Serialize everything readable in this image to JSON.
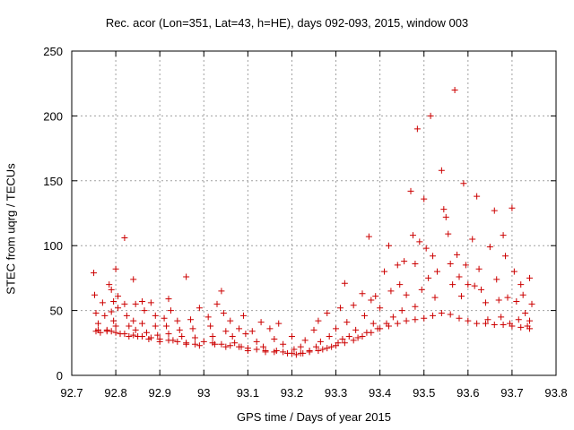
{
  "chart_data": {
    "type": "scatter",
    "title": "Rec. acor (Lon=351, Lat=43, h=HE), days 092-093, 2015, window 003",
    "xlabel": "GPS time / Days of year 2015",
    "ylabel": "STEC from uqrg / TECUs",
    "xlim": [
      92.7,
      93.8
    ],
    "ylim": [
      0,
      250
    ],
    "xticks": [
      92.7,
      92.8,
      92.9,
      93.0,
      93.1,
      93.2,
      93.3,
      93.4,
      93.5,
      93.6,
      93.7,
      93.8
    ],
    "xtick_labels": [
      "92.7",
      "92.8",
      "92.9",
      "93",
      "93.1",
      "93.2",
      "93.3",
      "93.4",
      "93.5",
      "93.6",
      "93.7",
      "93.8"
    ],
    "yticks": [
      0,
      50,
      100,
      150,
      200,
      250
    ],
    "ytick_labels": [
      "0",
      "50",
      "100",
      "150",
      "200",
      "250"
    ],
    "grid": true,
    "marker": "+",
    "color": "#cc0000",
    "points": [
      [
        92.75,
        79
      ],
      [
        92.752,
        62
      ],
      [
        92.755,
        48
      ],
      [
        92.76,
        40
      ],
      [
        92.755,
        34
      ],
      [
        92.77,
        56
      ],
      [
        92.775,
        46
      ],
      [
        92.78,
        35
      ],
      [
        92.765,
        33
      ],
      [
        92.785,
        70
      ],
      [
        92.79,
        66
      ],
      [
        92.795,
        57
      ],
      [
        92.79,
        49
      ],
      [
        92.795,
        42
      ],
      [
        92.79,
        34
      ],
      [
        92.8,
        82
      ],
      [
        92.805,
        61
      ],
      [
        92.805,
        52
      ],
      [
        92.8,
        38
      ],
      [
        92.81,
        32
      ],
      [
        92.82,
        106
      ],
      [
        92.82,
        55
      ],
      [
        92.825,
        46
      ],
      [
        92.83,
        38
      ],
      [
        92.83,
        30
      ],
      [
        92.84,
        74
      ],
      [
        92.845,
        55
      ],
      [
        92.84,
        42
      ],
      [
        92.845,
        35
      ],
      [
        92.85,
        30
      ],
      [
        92.86,
        57
      ],
      [
        92.865,
        50
      ],
      [
        92.86,
        40
      ],
      [
        92.87,
        33
      ],
      [
        92.875,
        28
      ],
      [
        92.88,
        56
      ],
      [
        92.89,
        46
      ],
      [
        92.89,
        38
      ],
      [
        92.895,
        31
      ],
      [
        92.9,
        26
      ],
      [
        92.91,
        44
      ],
      [
        92.915,
        38
      ],
      [
        92.92,
        59
      ],
      [
        92.925,
        50
      ],
      [
        92.92,
        32
      ],
      [
        92.93,
        27
      ],
      [
        92.94,
        42
      ],
      [
        92.945,
        35
      ],
      [
        92.95,
        30
      ],
      [
        92.96,
        76
      ],
      [
        92.96,
        24
      ],
      [
        92.97,
        43
      ],
      [
        92.975,
        36
      ],
      [
        92.98,
        29
      ],
      [
        92.99,
        52
      ],
      [
        92.99,
        23
      ],
      [
        93.01,
        45
      ],
      [
        93.015,
        38
      ],
      [
        93.02,
        30
      ],
      [
        93.025,
        24
      ],
      [
        93.03,
        55
      ],
      [
        93.04,
        65
      ],
      [
        93.045,
        48
      ],
      [
        93.05,
        34
      ],
      [
        93.05,
        22
      ],
      [
        93.06,
        42
      ],
      [
        93.065,
        30
      ],
      [
        93.07,
        25
      ],
      [
        93.08,
        36
      ],
      [
        93.085,
        22
      ],
      [
        93.09,
        46
      ],
      [
        93.095,
        32
      ],
      [
        93.1,
        19
      ],
      [
        93.11,
        34
      ],
      [
        93.12,
        26
      ],
      [
        93.13,
        41
      ],
      [
        93.135,
        22
      ],
      [
        93.14,
        18
      ],
      [
        93.15,
        36
      ],
      [
        93.16,
        28
      ],
      [
        93.165,
        19
      ],
      [
        93.17,
        40
      ],
      [
        93.18,
        24
      ],
      [
        93.19,
        17
      ],
      [
        93.2,
        30
      ],
      [
        93.205,
        20
      ],
      [
        93.21,
        16
      ],
      [
        93.22,
        22
      ],
      [
        93.225,
        17
      ],
      [
        93.23,
        27
      ],
      [
        93.24,
        19
      ],
      [
        93.25,
        35
      ],
      [
        93.255,
        22
      ],
      [
        93.26,
        42
      ],
      [
        93.265,
        26
      ],
      [
        93.27,
        20
      ],
      [
        93.28,
        48
      ],
      [
        93.285,
        30
      ],
      [
        93.29,
        22
      ],
      [
        93.3,
        36
      ],
      [
        93.305,
        25
      ],
      [
        93.31,
        52
      ],
      [
        93.315,
        28
      ],
      [
        93.32,
        71
      ],
      [
        93.325,
        41
      ],
      [
        93.33,
        30
      ],
      [
        93.34,
        54
      ],
      [
        93.345,
        35
      ],
      [
        93.35,
        29
      ],
      [
        93.36,
        63
      ],
      [
        93.365,
        46
      ],
      [
        93.37,
        33
      ],
      [
        93.375,
        107
      ],
      [
        93.38,
        58
      ],
      [
        93.385,
        40
      ],
      [
        93.39,
        61
      ],
      [
        93.395,
        36
      ],
      [
        93.4,
        52
      ],
      [
        93.41,
        80
      ],
      [
        93.415,
        40
      ],
      [
        93.42,
        100
      ],
      [
        93.425,
        65
      ],
      [
        93.43,
        45
      ],
      [
        93.44,
        85
      ],
      [
        93.445,
        70
      ],
      [
        93.45,
        50
      ],
      [
        93.455,
        88
      ],
      [
        93.46,
        62
      ],
      [
        93.47,
        142
      ],
      [
        93.475,
        108
      ],
      [
        93.48,
        86
      ],
      [
        93.48,
        53
      ],
      [
        93.485,
        190
      ],
      [
        93.49,
        103
      ],
      [
        93.495,
        66
      ],
      [
        93.5,
        136
      ],
      [
        93.505,
        98
      ],
      [
        93.51,
        75
      ],
      [
        93.515,
        200
      ],
      [
        93.52,
        92
      ],
      [
        93.525,
        60
      ],
      [
        93.53,
        80
      ],
      [
        93.54,
        158
      ],
      [
        93.545,
        128
      ],
      [
        93.55,
        122
      ],
      [
        93.555,
        109
      ],
      [
        93.56,
        86
      ],
      [
        93.565,
        70
      ],
      [
        93.57,
        220
      ],
      [
        93.575,
        93
      ],
      [
        93.58,
        76
      ],
      [
        93.585,
        61
      ],
      [
        93.59,
        148
      ],
      [
        93.595,
        85
      ],
      [
        93.6,
        70
      ],
      [
        93.61,
        105
      ],
      [
        93.615,
        69
      ],
      [
        93.62,
        138
      ],
      [
        93.625,
        82
      ],
      [
        93.63,
        66
      ],
      [
        93.64,
        56
      ],
      [
        93.645,
        43
      ],
      [
        93.65,
        99
      ],
      [
        93.66,
        127
      ],
      [
        93.665,
        74
      ],
      [
        93.67,
        58
      ],
      [
        93.675,
        45
      ],
      [
        93.68,
        108
      ],
      [
        93.685,
        92
      ],
      [
        93.69,
        60
      ],
      [
        93.695,
        40
      ],
      [
        93.7,
        129
      ],
      [
        93.705,
        80
      ],
      [
        93.71,
        57
      ],
      [
        93.715,
        43
      ],
      [
        93.72,
        70
      ],
      [
        93.725,
        62
      ],
      [
        93.73,
        48
      ],
      [
        93.735,
        38
      ],
      [
        93.74,
        75
      ],
      [
        93.745,
        55
      ],
      [
        93.74,
        42
      ],
      [
        92.76,
        35
      ],
      [
        92.78,
        34
      ],
      [
        92.8,
        33
      ],
      [
        92.82,
        32
      ],
      [
        92.84,
        31
      ],
      [
        92.86,
        30
      ],
      [
        92.88,
        29
      ],
      [
        92.9,
        28
      ],
      [
        92.92,
        27
      ],
      [
        92.94,
        26
      ],
      [
        92.96,
        25
      ],
      [
        92.98,
        24
      ],
      [
        93.0,
        26
      ],
      [
        93.02,
        25
      ],
      [
        93.04,
        24
      ],
      [
        93.06,
        23
      ],
      [
        93.08,
        22
      ],
      [
        93.1,
        21
      ],
      [
        93.12,
        20
      ],
      [
        93.14,
        19
      ],
      [
        93.16,
        18
      ],
      [
        93.18,
        18
      ],
      [
        93.2,
        17
      ],
      [
        93.22,
        17
      ],
      [
        93.24,
        18
      ],
      [
        93.26,
        19
      ],
      [
        93.28,
        21
      ],
      [
        93.3,
        23
      ],
      [
        93.32,
        25
      ],
      [
        93.34,
        27
      ],
      [
        93.36,
        30
      ],
      [
        93.38,
        33
      ],
      [
        93.4,
        36
      ],
      [
        93.42,
        38
      ],
      [
        93.44,
        40
      ],
      [
        93.46,
        42
      ],
      [
        93.48,
        43
      ],
      [
        93.5,
        44
      ],
      [
        93.52,
        46
      ],
      [
        93.54,
        48
      ],
      [
        93.56,
        47
      ],
      [
        93.58,
        44
      ],
      [
        93.6,
        42
      ],
      [
        93.62,
        40
      ],
      [
        93.64,
        40
      ],
      [
        93.66,
        39
      ],
      [
        93.68,
        39
      ],
      [
        93.7,
        38
      ],
      [
        93.72,
        37
      ],
      [
        93.74,
        36
      ]
    ]
  }
}
